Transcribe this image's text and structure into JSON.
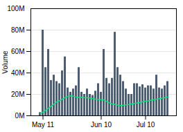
{
  "chart_data": {
    "type": "bar",
    "ylabel": "Volume",
    "annotations": [
      "100M"
    ],
    "categories": [
      null,
      "May 11",
      null,
      null,
      null,
      null,
      null,
      null,
      null,
      null,
      null,
      null,
      null,
      null,
      null,
      null,
      null,
      null,
      null,
      null,
      null,
      null,
      "Jun 10",
      null,
      null,
      null,
      null,
      null,
      null,
      null,
      null,
      null,
      null,
      null,
      null,
      null,
      null,
      null,
      "Jul 10",
      null,
      null,
      null,
      null,
      null,
      null,
      null,
      null
    ],
    "series": [
      {
        "type": "bar",
        "color": "#4e5d72",
        "values": [
          3000000,
          80000000,
          45000000,
          62000000,
          33000000,
          38000000,
          32000000,
          30000000,
          42000000,
          55000000,
          26000000,
          22000000,
          25000000,
          28000000,
          45000000,
          22000000,
          20000000,
          25000000,
          20000000,
          19000000,
          23000000,
          30000000,
          22000000,
          62000000,
          35000000,
          30000000,
          35000000,
          78000000,
          45000000,
          38000000,
          32000000,
          25000000,
          20000000,
          20000000,
          30000000,
          30000000,
          27000000,
          29000000,
          26000000,
          28000000,
          28000000,
          25000000,
          38000000,
          26000000,
          25000000,
          28000000,
          32000000
        ]
      },
      {
        "type": "line",
        "color": "#00e676",
        "values": [
          2000000,
          3500000,
          5000000,
          7000000,
          9000000,
          11000000,
          13000000,
          14000000,
          15500000,
          17000000,
          18000000,
          18500000,
          18200000,
          17500000,
          17000000,
          17200000,
          17000000,
          16800000,
          16500000,
          16000000,
          15500000,
          15200000,
          15000000,
          14800000,
          13500000,
          12000000,
          11000000,
          10500000,
          10000000,
          9500000,
          9800000,
          10200000,
          10500000,
          11000000,
          11500000,
          12000000,
          12500000,
          13000000,
          13500000,
          14000000,
          14500000,
          15000000,
          15500000,
          16000000,
          16500000,
          17000000,
          17500000
        ]
      }
    ],
    "ylim": [
      0,
      100000000
    ],
    "yticks": [
      {
        "value": 0,
        "label": "0M"
      },
      {
        "value": 20000000,
        "label": "20M"
      },
      {
        "value": 40000000,
        "label": "40M"
      },
      {
        "value": 60000000,
        "label": "60M"
      },
      {
        "value": 80000000,
        "label": "80M"
      }
    ],
    "grid": true
  }
}
